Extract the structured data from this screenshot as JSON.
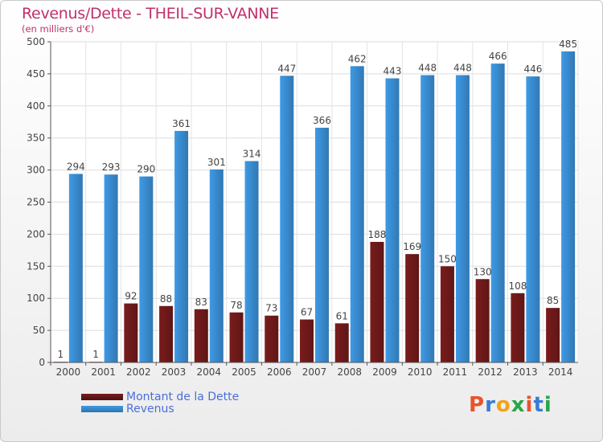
{
  "title": "Revenus/Dette - THEIL-SUR-VANNE",
  "subtitle": "(en milliers d'€)",
  "chart_data": {
    "type": "bar",
    "categories": [
      "2000",
      "2001",
      "2002",
      "2003",
      "2004",
      "2005",
      "2006",
      "2007",
      "2008",
      "2009",
      "2010",
      "2011",
      "2012",
      "2013",
      "2014"
    ],
    "series": [
      {
        "name": "Montant de la Dette",
        "color": "#7a1c1c",
        "values": [
          1,
          1,
          92,
          88,
          83,
          78,
          73,
          67,
          61,
          188,
          169,
          150,
          130,
          108,
          85
        ]
      },
      {
        "name": "Revenus",
        "color": "#3f9ae5",
        "values": [
          294,
          293,
          290,
          361,
          301,
          314,
          447,
          366,
          462,
          443,
          448,
          448,
          466,
          446,
          485
        ]
      }
    ],
    "y_ticks": [
      "0",
      "50",
      "100",
      "150",
      "200",
      "250",
      "300",
      "350",
      "400",
      "450",
      "500"
    ],
    "ylim": [
      0,
      500
    ],
    "grid": true,
    "legend_position": "bottom-left"
  },
  "logo": {
    "letters": [
      "P",
      "r",
      "o",
      "x",
      "i",
      "t",
      "i"
    ],
    "colors": [
      "#e8542b",
      "#3a7bd5",
      "#f2a21b",
      "#2aa548",
      "#e8542b",
      "#3a7bd5",
      "#2aa548"
    ]
  }
}
